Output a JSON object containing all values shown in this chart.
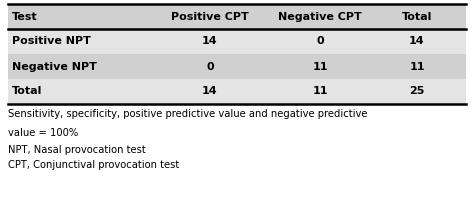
{
  "col_headers": [
    "Test",
    "Positive CPT",
    "Negative CPT",
    "Total"
  ],
  "rows": [
    [
      "Positive NPT",
      "14",
      "0",
      "14"
    ],
    [
      "Negative NPT",
      "0",
      "11",
      "11"
    ],
    [
      "Total",
      "14",
      "11",
      "25"
    ]
  ],
  "caption_lines": [
    "Sensitivity, specificity, positive predictive value and negative predictive",
    "value = 100%",
    "NPT, Nasal provocation test",
    "CPT, Conjunctival provocation test"
  ],
  "header_bg": "#d0d0d0",
  "row_bg_odd": "#e4e4e4",
  "row_bg_even": "#d0d0d0",
  "text_color": "#000000",
  "fig_width": 4.74,
  "fig_height": 2.12,
  "table_font_size": 8.0,
  "caption_font_size": 7.2
}
